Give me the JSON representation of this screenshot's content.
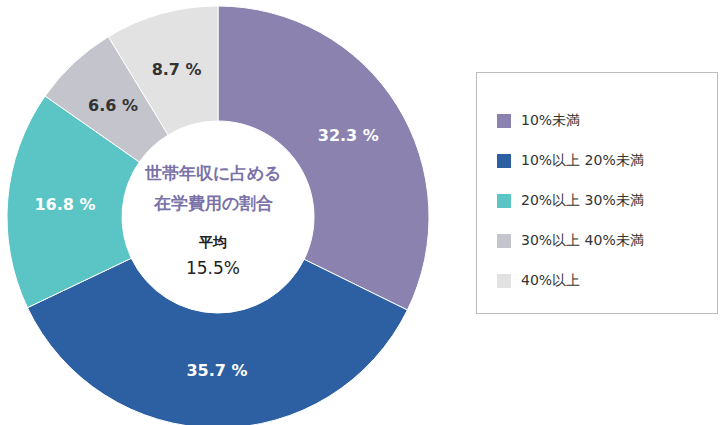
{
  "chart_data": {
    "type": "pie",
    "title": "世帯年収に占める在学費用の割合",
    "categories": [
      "10%未満",
      "10%以上 20%未満",
      "20%以上 30%未満",
      "30%以上 40%未満",
      "40%以上"
    ],
    "values": [
      32.3,
      35.7,
      16.8,
      6.6,
      8.7
    ],
    "value_labels": [
      "32.3 %",
      "35.7 %",
      "16.8 %",
      "6.6 %",
      "8.7 %"
    ],
    "colors": [
      "#8b82b0",
      "#2d5fa3",
      "#5bc4c4",
      "#c4c4cc",
      "#e2e2e2"
    ],
    "data_labels": true,
    "legend": "right",
    "annotations": [
      "平均",
      "15.5%"
    ]
  }
}
